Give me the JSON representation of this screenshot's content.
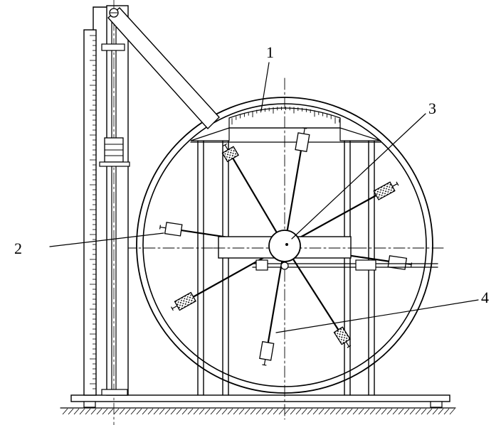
{
  "labels": {
    "label_1": "1",
    "label_2": "2",
    "label_3": "3",
    "label_4": "4"
  }
}
